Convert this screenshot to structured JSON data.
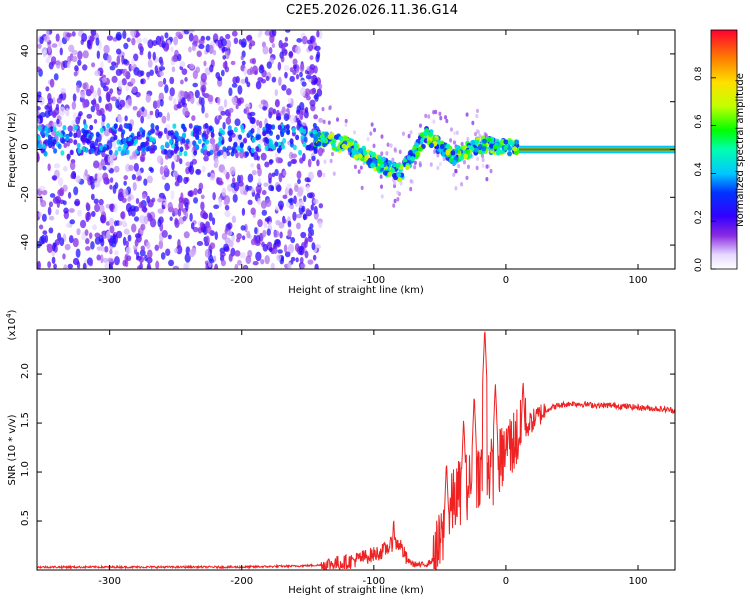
{
  "title": "C2E5.2026.026.11.36.G14",
  "colors": {
    "background": "#ffffff",
    "axis": "#000000",
    "snr_line": "#ee2222",
    "carrier": "#ff2a2a"
  },
  "chart_data": [
    {
      "type": "heatmap",
      "name": "spectrogram",
      "xlabel": "Height of straight line (km)",
      "ylabel": "Frequency (Hz)",
      "xlim": [
        -355,
        128
      ],
      "ylim": [
        -50,
        50
      ],
      "xticks": [
        -300,
        -200,
        -100,
        0,
        100
      ],
      "xtick_labels": [
        "-300",
        "-200",
        "-100",
        "0",
        "100"
      ],
      "yticks": [
        -40,
        -20,
        0,
        20,
        40
      ],
      "ytick_labels": [
        "-40",
        "-20",
        "0",
        "20",
        "40"
      ],
      "colorbar": {
        "label": "Normalized spectral amplitude",
        "range": [
          0.0,
          1.0
        ],
        "ticks": [
          0.0,
          0.2,
          0.4,
          0.6,
          0.8
        ],
        "tick_labels": [
          "0.0",
          "0.2",
          "0.4",
          "0.6",
          "0.8"
        ],
        "colormap": "rainbow (white/violet at 0, red at 1)"
      },
      "features": {
        "noise_region_x": [
          -355,
          -140
        ],
        "carrier_band_center": [
          [
            -140,
            4
          ],
          [
            -120,
            2
          ],
          [
            -100,
            -5
          ],
          [
            -80,
            -10
          ],
          [
            -60,
            6
          ],
          [
            -40,
            -3
          ],
          [
            -20,
            2
          ],
          [
            0,
            1
          ],
          [
            128,
            0
          ]
        ],
        "stable_carrier_from_x": 10
      }
    },
    {
      "type": "line",
      "name": "snr",
      "xlabel": "Height of straight line (km)",
      "ylabel": "SNR (10 * v/v)",
      "y_multiplier_label": "(x10",
      "y_multiplier_exponent": "4",
      "xlim": [
        -355,
        128
      ],
      "ylim": [
        0.0,
        2.45
      ],
      "xticks": [
        -300,
        -200,
        -100,
        0,
        100
      ],
      "xtick_labels": [
        "-300",
        "-200",
        "-100",
        "0",
        "100"
      ],
      "yticks": [
        0.5,
        1.0,
        1.5,
        2.0
      ],
      "ytick_labels": [
        "0.5",
        "1.0",
        "1.5",
        "2.0"
      ],
      "series": [
        {
          "name": "SNR",
          "x": [
            -355,
            -300,
            -250,
            -200,
            -160,
            -140,
            -120,
            -105,
            -95,
            -90,
            -85,
            -80,
            -75,
            -70,
            -65,
            -60,
            -55,
            -50,
            -45,
            -40,
            -35,
            -30,
            -25,
            -20,
            -15,
            -10,
            -5,
            0,
            5,
            10,
            15,
            20,
            25,
            30,
            35,
            40,
            50,
            60,
            70,
            80,
            90,
            100,
            110,
            120,
            128
          ],
          "y": [
            0.03,
            0.03,
            0.03,
            0.03,
            0.04,
            0.05,
            0.08,
            0.14,
            0.18,
            0.22,
            0.28,
            0.26,
            0.1,
            0.06,
            0.05,
            0.06,
            0.1,
            0.25,
            0.45,
            0.7,
            0.8,
            0.85,
            0.9,
            1.0,
            1.05,
            1.0,
            1.1,
            1.2,
            1.3,
            1.38,
            1.45,
            1.52,
            1.58,
            1.63,
            1.66,
            1.68,
            1.7,
            1.69,
            1.68,
            1.68,
            1.67,
            1.66,
            1.65,
            1.64,
            1.63
          ]
        }
      ],
      "peaks": [
        {
          "x": -85,
          "y": 0.55
        },
        {
          "x": -45,
          "y": 1.12
        },
        {
          "x": -32,
          "y": 1.55
        },
        {
          "x": -24,
          "y": 1.8
        },
        {
          "x": -16,
          "y": 2.48
        },
        {
          "x": -8,
          "y": 1.92
        },
        {
          "x": 2,
          "y": 1.5
        },
        {
          "x": 13,
          "y": 1.95
        }
      ]
    }
  ]
}
